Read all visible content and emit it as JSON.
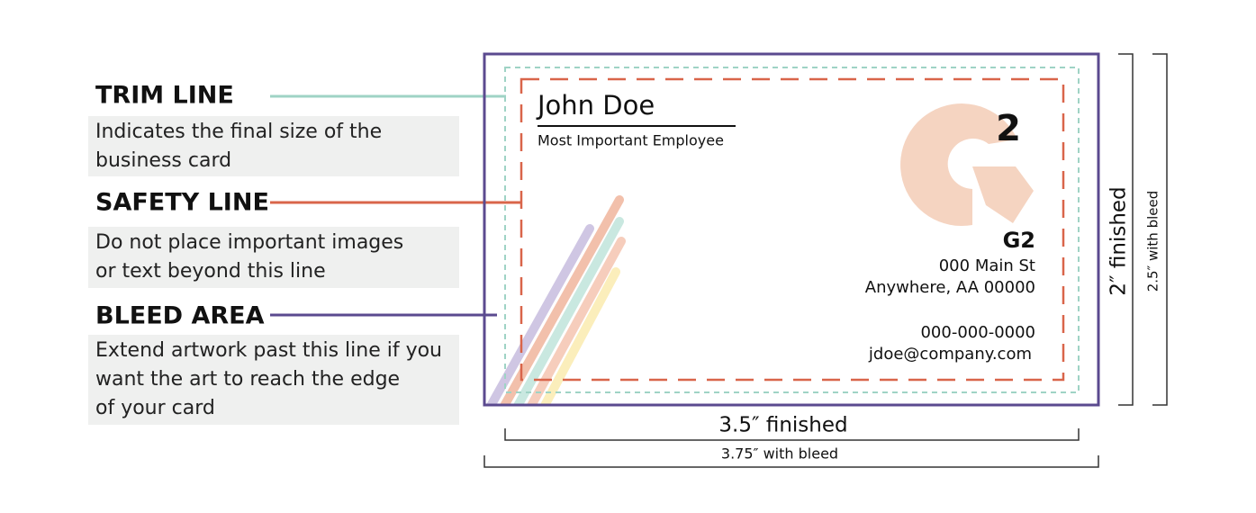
{
  "legend": [
    {
      "title": "TRIM LINE",
      "lines": [
        "Indicates the final size of the",
        "business card"
      ]
    },
    {
      "title": "SAFETY LINE",
      "lines": [
        "Do not place important images",
        "or text beyond this line"
      ]
    },
    {
      "title": "BLEED AREA",
      "lines": [
        "Extend artwork past this line if you",
        "want the art to reach the edge",
        "of your card"
      ]
    }
  ],
  "card": {
    "name": "John Doe",
    "job_title": "Most Important Employee",
    "logo": "2",
    "company": "G2",
    "address": [
      "000 Main St",
      "Anywhere, AA 00000"
    ],
    "phone": "000-000-0000",
    "email": "jdoe@company.com"
  },
  "dimensions": {
    "width_finished": "3.5″ finished",
    "width_bleed": "3.75″ with bleed",
    "height_finished": "2″ finished",
    "height_bleed": "2.5″ with bleed"
  }
}
